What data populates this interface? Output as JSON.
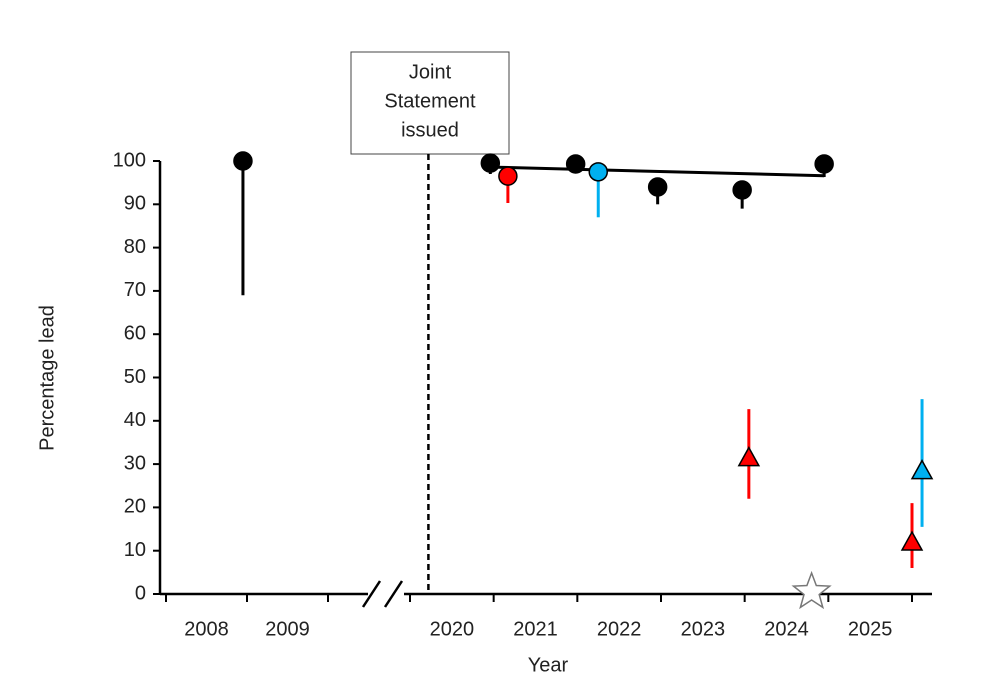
{
  "chart_data": {
    "type": "scatter",
    "xlabel": "Year",
    "ylabel": "Percentage lead",
    "ylim": [
      0,
      100
    ],
    "yticks": [
      0,
      10,
      20,
      30,
      40,
      50,
      60,
      70,
      80,
      90,
      100
    ],
    "xlim_segments": [
      [
        2008,
        2010
      ],
      [
        2020,
        2026
      ]
    ],
    "axis_break": true,
    "xticks": [
      2008,
      2009,
      2010,
      2020,
      2021,
      2022,
      2023,
      2024,
      2025,
      2026
    ],
    "categories": [
      2008,
      2009,
      2020,
      2021,
      2022,
      2023,
      2024,
      2025
    ],
    "event": {
      "x": 2020.22,
      "label": [
        "Joint",
        "Statement",
        "issued"
      ]
    },
    "series": [
      {
        "marker": "circle",
        "color": "#000000",
        "x": [
          2008.95,
          2020.96,
          2021.98,
          2022.96,
          2023.97,
          2024.95
        ],
        "values": [
          100,
          99.5,
          99.3,
          94,
          93.3,
          99.3
        ],
        "lower": [
          69,
          97,
          null,
          90,
          89,
          96.3
        ],
        "upper": [
          null,
          null,
          null,
          null,
          null,
          null
        ]
      },
      {
        "marker": "circle",
        "color": "#ff0000",
        "x": [
          2021.17
        ],
        "values": [
          96.5
        ],
        "lower": [
          90.3
        ],
        "upper": [
          null
        ]
      },
      {
        "marker": "circle",
        "color": "#00b0f0",
        "x": [
          2022.25
        ],
        "values": [
          97.5
        ],
        "lower": [
          87
        ],
        "upper": [
          null
        ]
      },
      {
        "marker": "triangle",
        "color": "#ff0000",
        "x": [
          2024.05,
          2026.0
        ],
        "values": [
          31.5,
          12
        ],
        "lower": [
          22,
          6
        ],
        "upper": [
          42.7,
          21
        ]
      },
      {
        "marker": "triangle",
        "color": "#00b0f0",
        "x": [
          2026.12
        ],
        "values": [
          28.5
        ],
        "lower": [
          15.5
        ],
        "upper": [
          45
        ]
      },
      {
        "marker": "star",
        "color": "#ffffff",
        "x": [
          2024.8
        ],
        "values": [
          0
        ],
        "lower": [
          null
        ],
        "upper": [
          null
        ]
      },
      {
        "marker": "line",
        "color": "#000000",
        "x": [
          2020.96,
          2024.95
        ],
        "values": [
          98.6,
          96.6
        ]
      }
    ]
  }
}
